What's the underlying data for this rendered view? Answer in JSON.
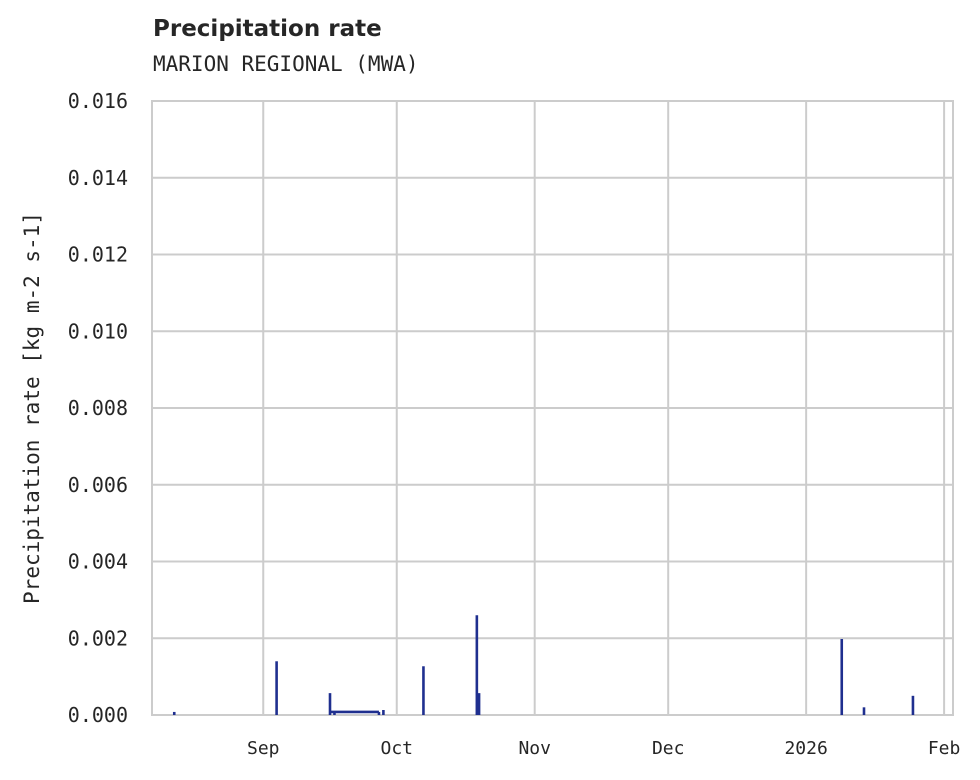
{
  "header": {
    "title": "Precipitation rate",
    "subtitle": "MARION REGIONAL (MWA)"
  },
  "axes": {
    "ylabel": "Precipitation rate [kg m-2 s-1]",
    "yticks": [
      "0.000",
      "0.002",
      "0.004",
      "0.006",
      "0.008",
      "0.010",
      "0.012",
      "0.014",
      "0.016"
    ],
    "xticks": [
      "Sep",
      "Oct",
      "Nov",
      "Dec",
      "2026",
      "Feb"
    ]
  },
  "colors": {
    "series": "#1f2f8f",
    "grid": "#cccccc",
    "text": "#262626"
  },
  "chart_data": {
    "type": "line",
    "title": "Precipitation rate",
    "subtitle": "MARION REGIONAL (MWA)",
    "xlabel": "",
    "ylabel": "Precipitation rate [kg m-2 s-1]",
    "ylim": [
      0,
      0.016
    ],
    "xlim": [
      "2025-08-07",
      "2026-02-03"
    ],
    "grid": true,
    "legend": null,
    "x_tick_labels": [
      "Sep",
      "Oct",
      "Nov",
      "Dec",
      "2026",
      "Feb"
    ],
    "y_tick_labels": [
      "0.000",
      "0.002",
      "0.004",
      "0.006",
      "0.008",
      "0.010",
      "0.012",
      "0.014",
      "0.016"
    ],
    "series": [
      {
        "name": "Precipitation rate",
        "x": [
          "2025-08-12",
          "2025-09-04",
          "2025-09-16",
          "2025-09-17",
          "2025-09-27",
          "2025-09-28",
          "2025-10-07",
          "2025-10-19",
          "2025-10-19T12",
          "2026-01-09",
          "2026-01-14",
          "2026-01-25"
        ],
        "values": [
          8e-05,
          0.0014,
          0.00057,
          8e-05,
          8e-05,
          0.00013,
          0.00127,
          0.0026,
          0.00057,
          0.00198,
          0.0002,
          0.0005
        ]
      }
    ]
  }
}
